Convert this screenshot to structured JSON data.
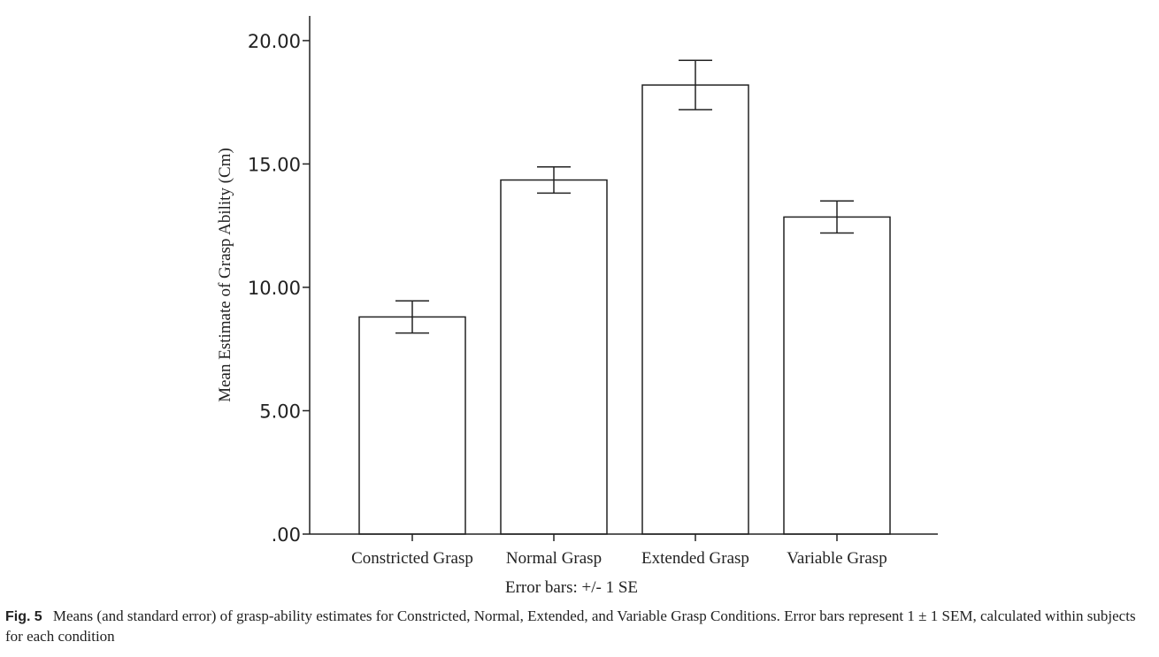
{
  "chart_data": {
    "type": "bar",
    "categories": [
      "Constricted Grasp",
      "Normal Grasp",
      "Extended Grasp",
      "Variable Grasp"
    ],
    "values": [
      8.8,
      14.35,
      18.2,
      12.85
    ],
    "error_low": [
      8.15,
      13.82,
      17.2,
      12.2
    ],
    "error_high": [
      9.45,
      14.88,
      19.2,
      13.5
    ],
    "title": "",
    "xlabel": "Error bars: +/- 1 SE",
    "ylabel": "Mean Estimate of Grasp Ability (Cm)",
    "ylim": [
      0,
      21.0
    ],
    "yticks": [
      0,
      5,
      10,
      15,
      20
    ],
    "ytick_labels": [
      ".00",
      "5.00",
      "10.00",
      "15.00",
      "20.00"
    ],
    "grid": false,
    "legend": "none",
    "bar_fill": "#ffffff",
    "bar_stroke": "#222222"
  },
  "caption": {
    "label": "Fig.",
    "number": "5",
    "text": "Means (and standard error) of grasp-ability estimates for Constricted, Normal, Extended, and Variable Grasp Conditions. Error bars represent 1 ± 1 SEM, calculated within subjects for each condition"
  }
}
